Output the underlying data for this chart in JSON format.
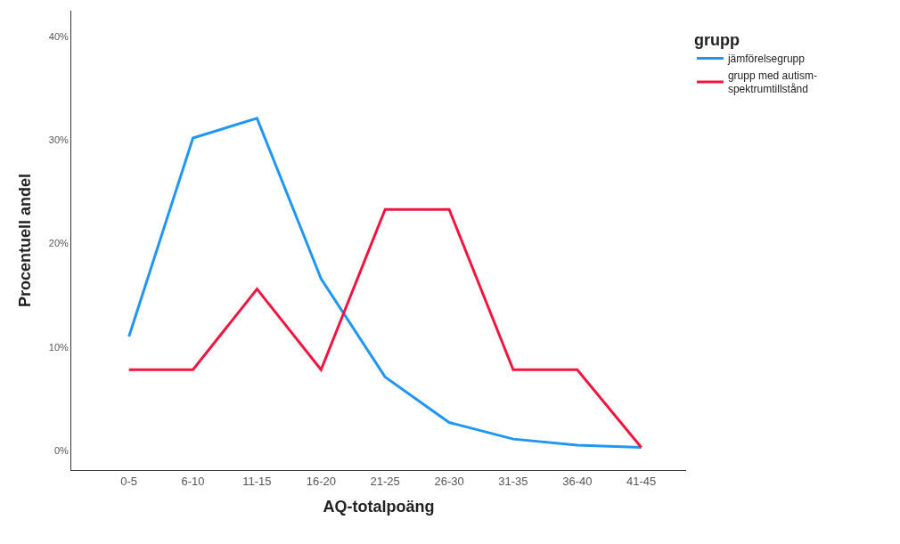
{
  "chart_data": {
    "type": "line",
    "xlabel": "AQ-totalpoäng",
    "ylabel": "Procentuell andel",
    "legend_title": "grupp",
    "categories": [
      "0-5",
      "6-10",
      "11-15",
      "16-20",
      "21-25",
      "26-30",
      "31-35",
      "36-40",
      "41-45"
    ],
    "series": [
      {
        "name": "jämförelsegrupp",
        "color": "#2196f3",
        "values": [
          11,
          30.2,
          32.1,
          16.6,
          7.1,
          2.7,
          1.1,
          0.5,
          0.3
        ]
      },
      {
        "name": "grupp med autism-\nspektrumtillstånd",
        "color": "#f0163f",
        "values": [
          7.8,
          7.8,
          15.6,
          7.8,
          23.3,
          23.3,
          7.8,
          7.8,
          0.3
        ]
      }
    ],
    "ylim": [
      -1.9,
      42.5
    ],
    "yticks": [
      {
        "value": 0,
        "label": "0%"
      },
      {
        "value": 10,
        "label": "10%"
      },
      {
        "value": 20,
        "label": "20%"
      },
      {
        "value": 30,
        "label": "30%"
      },
      {
        "value": 40,
        "label": "40%"
      }
    ],
    "legend": "top right",
    "marker": "none",
    "line_style": "solid"
  }
}
